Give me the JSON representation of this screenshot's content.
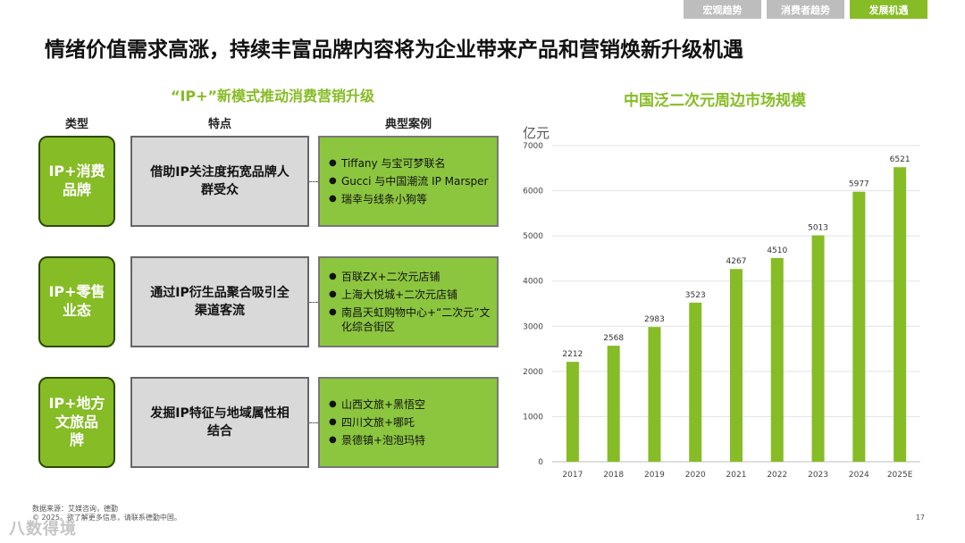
{
  "tabs": [
    {
      "label": "宏观趋势",
      "active": false
    },
    {
      "label": "消费者趋势",
      "active": false
    },
    {
      "label": "发展机遇",
      "active": true
    }
  ],
  "title": "情绪价值需求高涨，持续丰富品牌内容将为企业带来产品和营销焕新升级机遇",
  "left": {
    "subtitle": "“IP+”新模式推动消费营销升级",
    "headers": {
      "type": "类型",
      "feature": "特点",
      "cases": "典型案例"
    },
    "rows": [
      {
        "type_lines": [
          "IP+消费",
          "品牌"
        ],
        "feature_lines": [
          "借助IP关注度拓宽品牌人",
          "群受众"
        ],
        "cases": [
          "Tiffany 与宝可梦联名",
          "Gucci 与中国潮流 IP Marsper",
          "瑞幸与线条小狗等"
        ]
      },
      {
        "type_lines": [
          "IP+零售",
          "业态"
        ],
        "feature_lines": [
          "通过IP衍生品聚合吸引全",
          "渠道客流"
        ],
        "cases": [
          "百联ZX+二次元店铺",
          "上海大悦城+二次元店铺",
          "南昌天虹购物中心+“二次元”文化综合街区"
        ]
      },
      {
        "type_lines": [
          "IP+地方",
          "文旅品",
          "牌"
        ],
        "feature_lines": [
          "发掘IP特征与地域属性相",
          "结合"
        ],
        "cases": [
          "山西文旅+黑悟空",
          "四川文旅+哪吒",
          "景德镇+泡泡玛特"
        ]
      }
    ]
  },
  "chart_data": {
    "type": "bar",
    "title": "中国泛二次元周边市场规模",
    "ylabel": "亿元",
    "categories": [
      "2017",
      "2018",
      "2019",
      "2020",
      "2021",
      "2022",
      "2023",
      "2024",
      "2025E"
    ],
    "values": [
      2212,
      2568,
      2983,
      3523,
      4267,
      4510,
      5013,
      5977,
      6521
    ],
    "ylim": [
      0,
      7000
    ],
    "yticks": [
      0,
      1000,
      2000,
      3000,
      4000,
      5000,
      6000,
      7000
    ],
    "grid": true,
    "bar_color": "#86bc25",
    "data_labels": true
  },
  "footer": {
    "source": "数据来源：艾媒咨询，德勤",
    "copyright": "© 2025。欲了解更多信息，请联系德勤中国。",
    "page": "17",
    "watermark": "八数得境"
  },
  "colors": {
    "accent": "#86bc25",
    "dark_green_border": "#2f4a06",
    "tab_inactive": "#bdbdbd",
    "feature_bg": "#d9d9d9"
  }
}
